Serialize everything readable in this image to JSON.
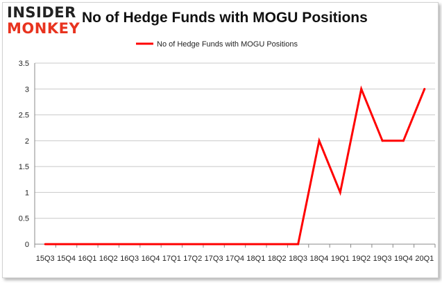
{
  "logo": {
    "line1": "INSIDER",
    "line2": "MONKEY"
  },
  "chart_data": {
    "type": "line",
    "title": "No of Hedge Funds with MOGU Positions",
    "xlabel": "",
    "ylabel": "",
    "categories": [
      "15Q3",
      "15Q4",
      "16Q1",
      "16Q2",
      "16Q3",
      "16Q4",
      "17Q1",
      "17Q2",
      "17Q3",
      "17Q4",
      "18Q1",
      "18Q2",
      "18Q3",
      "18Q4",
      "19Q1",
      "19Q2",
      "19Q3",
      "19Q4",
      "20Q1"
    ],
    "x_tick_labels": [
      "15Q3",
      "15Q4",
      "16Q1",
      "16Q2",
      "16Q3",
      "16Q4",
      "17Q1",
      "17Q2",
      "17Q3",
      "17Q4",
      "18Q1",
      "18Q2",
      "18Q3",
      "18Q4",
      "19Q1",
      "19Q2",
      "19Q3",
      "19Q4",
      "20Q1"
    ],
    "series": [
      {
        "name": "No of Hedge Funds with MOGU Positions",
        "color": "#ff0000",
        "values": [
          0,
          0,
          0,
          0,
          0,
          0,
          0,
          0,
          0,
          0,
          0,
          0,
          0,
          2,
          1,
          3,
          2,
          2,
          3
        ]
      }
    ],
    "ylim": [
      0,
      3.5
    ],
    "y_ticks": [
      "0",
      "0.5",
      "1",
      "1.5",
      "2",
      "2.5",
      "3",
      "3.5"
    ],
    "grid": true,
    "legend_position": "top"
  }
}
